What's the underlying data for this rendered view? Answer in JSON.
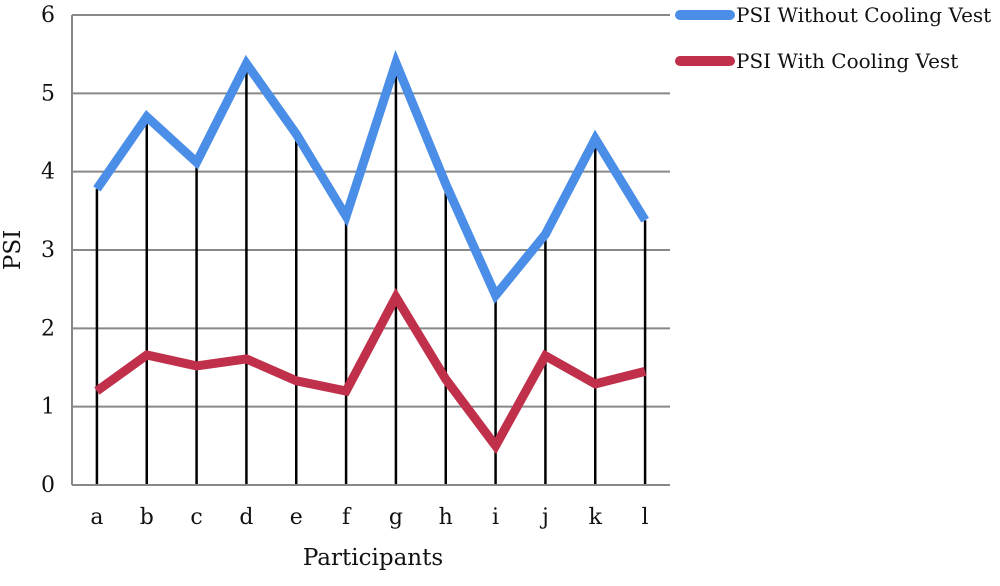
{
  "chart_data": {
    "type": "line",
    "xlabel": "Participants",
    "ylabel": "PSI",
    "categories": [
      "a",
      "b",
      "c",
      "d",
      "e",
      "f",
      "g",
      "h",
      "i",
      "j",
      "k",
      "l"
    ],
    "ylim": [
      0,
      6
    ],
    "yticks": [
      "0",
      "1",
      "2",
      "3",
      "4",
      "5",
      "6"
    ],
    "grid": "horizontal",
    "drop_lines": true,
    "legend_position": "top-right",
    "series": [
      {
        "name": "PSI Without Cooling Vest",
        "color": "#4a8ee8",
        "values": [
          3.78,
          4.7,
          4.12,
          5.38,
          4.48,
          3.43,
          5.39,
          3.84,
          2.42,
          3.2,
          4.42,
          3.38
        ]
      },
      {
        "name": "PSI With Cooling Vest",
        "color": "#c0304a",
        "values": [
          1.2,
          1.66,
          1.52,
          1.61,
          1.33,
          1.2,
          2.4,
          1.35,
          0.5,
          1.65,
          1.29,
          1.45
        ]
      }
    ]
  }
}
